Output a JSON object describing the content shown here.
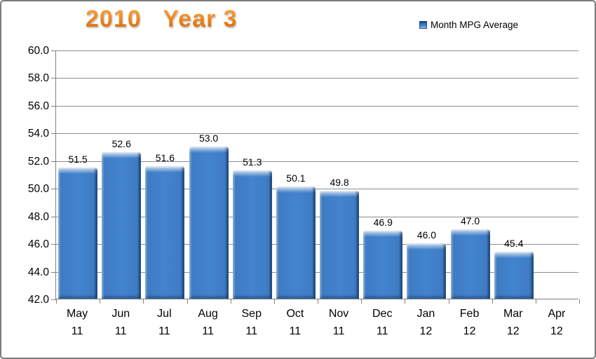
{
  "title": {
    "text": "2010   Year 3",
    "color_top": "#f9a348",
    "color_bottom": "#d8690a"
  },
  "legend": {
    "label": "Month MPG Average",
    "marker_color": "#3e7cc4"
  },
  "chart_data": {
    "type": "bar",
    "title": "2010   Year 3",
    "xlabel": "",
    "ylabel": "",
    "legend_entries": [
      "Month MPG Average"
    ],
    "legend_position": "top-right",
    "grid": true,
    "categories": [
      {
        "month": "May",
        "year": "11"
      },
      {
        "month": "Jun",
        "year": "11"
      },
      {
        "month": "Jul",
        "year": "11"
      },
      {
        "month": "Aug",
        "year": "11"
      },
      {
        "month": "Sep",
        "year": "11"
      },
      {
        "month": "Oct",
        "year": "11"
      },
      {
        "month": "Nov",
        "year": "11"
      },
      {
        "month": "Dec",
        "year": "11"
      },
      {
        "month": "Jan",
        "year": "12"
      },
      {
        "month": "Feb",
        "year": "12"
      },
      {
        "month": "Mar",
        "year": "12"
      },
      {
        "month": "Apr",
        "year": "12"
      }
    ],
    "values": [
      51.5,
      52.6,
      51.6,
      53.0,
      51.3,
      50.1,
      49.8,
      46.9,
      46.0,
      47.0,
      45.4,
      null
    ],
    "data_labels": [
      "51.5",
      "52.6",
      "51.6",
      "53.0",
      "51.3",
      "50.1",
      "49.8",
      "46.9",
      "46.0",
      "47.0",
      "45.4",
      null
    ],
    "ylim": [
      42.0,
      60.0
    ],
    "ytick_step": 2.0,
    "yticks": [
      "60.0",
      "58.0",
      "56.0",
      "54.0",
      "52.0",
      "50.0",
      "48.0",
      "46.0",
      "44.0",
      "42.0"
    ],
    "bar_color": "#3e7cc4",
    "gridline_color": "#8c8c8c"
  }
}
